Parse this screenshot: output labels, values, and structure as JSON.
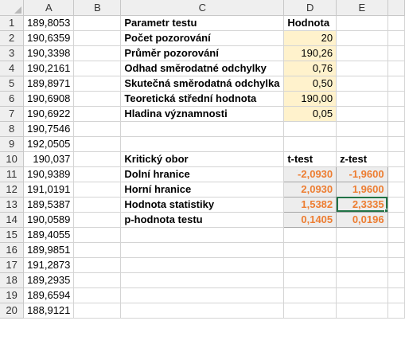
{
  "columns": [
    "A",
    "B",
    "C",
    "D",
    "E"
  ],
  "rows": [
    {
      "n": "1",
      "a": "189,8053",
      "c": "Parametr testu",
      "d": "Hodnota",
      "e": ""
    },
    {
      "n": "2",
      "a": "190,6359",
      "c": "Počet pozorování",
      "d": "20",
      "e": ""
    },
    {
      "n": "3",
      "a": "190,3398",
      "c": "Průměr pozorování",
      "d": "190,26",
      "e": ""
    },
    {
      "n": "4",
      "a": "190,2161",
      "c": "Odhad směrodatné odchylky",
      "d": "0,76",
      "e": ""
    },
    {
      "n": "5",
      "a": "189,8971",
      "c": "Skutečná směrodatná odchylka",
      "d": "0,50",
      "e": ""
    },
    {
      "n": "6",
      "a": "190,6908",
      "c": "Teoretická střední hodnota",
      "d": "190,00",
      "e": ""
    },
    {
      "n": "7",
      "a": "190,6922",
      "c": "Hladina významnosti",
      "d": "0,05",
      "e": ""
    },
    {
      "n": "8",
      "a": "190,7546",
      "c": "",
      "d": "",
      "e": ""
    },
    {
      "n": "9",
      "a": "192,0505",
      "c": "",
      "d": "",
      "e": ""
    },
    {
      "n": "10",
      "a": "190,037",
      "c": "Kritický obor",
      "d": "t-test",
      "e": "z-test"
    },
    {
      "n": "11",
      "a": "190,9389",
      "c": "Dolní hranice",
      "d": "-2,0930",
      "e": "-1,9600"
    },
    {
      "n": "12",
      "a": "191,0191",
      "c": "Horní hranice",
      "d": "2,0930",
      "e": "1,9600"
    },
    {
      "n": "13",
      "a": "189,5387",
      "c": "Hodnota statistiky",
      "d": "1,5382",
      "e": "2,3335"
    },
    {
      "n": "14",
      "a": "190,0589",
      "c": "p-hodnota testu",
      "d": "0,1405",
      "e": "0,0196"
    },
    {
      "n": "15",
      "a": "189,4055",
      "c": "",
      "d": "",
      "e": ""
    },
    {
      "n": "16",
      "a": "189,9851",
      "c": "",
      "d": "",
      "e": ""
    },
    {
      "n": "17",
      "a": "191,2873",
      "c": "",
      "d": "",
      "e": ""
    },
    {
      "n": "18",
      "a": "189,2935",
      "c": "",
      "d": "",
      "e": ""
    },
    {
      "n": "19",
      "a": "189,6594",
      "c": "",
      "d": "",
      "e": ""
    },
    {
      "n": "20",
      "a": "188,9121",
      "c": "",
      "d": "",
      "e": ""
    }
  ],
  "colors": {
    "input_fill": "#fff2cc",
    "output_fill": "#ededed",
    "output_text": "#ed7d31",
    "selection": "#217346"
  }
}
